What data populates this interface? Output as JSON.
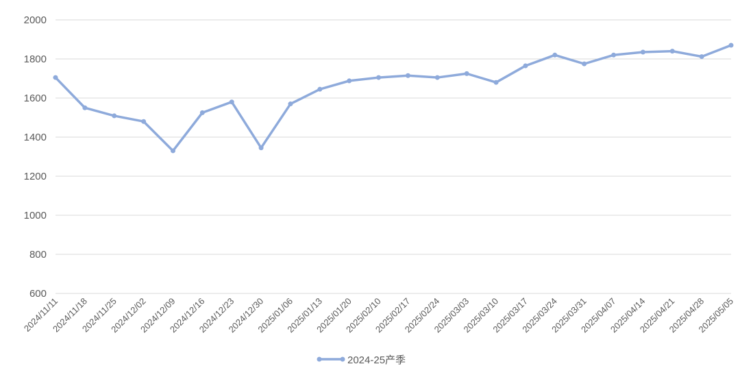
{
  "chart_data": {
    "type": "line",
    "categories": [
      "2024/11/11",
      "2024/11/18",
      "2024/11/25",
      "2024/12/02",
      "2024/12/09",
      "2024/12/16",
      "2024/12/23",
      "2024/12/30",
      "2025/01/06",
      "2025/01/13",
      "2025/01/20",
      "2025/02/10",
      "2025/02/17",
      "2025/02/24",
      "2025/03/03",
      "2025/03/10",
      "2025/03/17",
      "2025/03/24",
      "2025/03/31",
      "2025/04/07",
      "2025/04/14",
      "2025/04/21",
      "2025/04/28",
      "2025/05/05"
    ],
    "series": [
      {
        "name": "2024-25产季",
        "color": "#8eaadb",
        "values": [
          1705,
          1550,
          1509,
          1480,
          1330,
          1525,
          1580,
          1345,
          1570,
          1645,
          1688,
          1705,
          1715,
          1705,
          1725,
          1680,
          1765,
          1820,
          1775,
          1820,
          1835,
          1840,
          1812,
          1870
        ]
      }
    ],
    "ylim": [
      600,
      2000
    ],
    "yticks": [
      600,
      800,
      1000,
      1200,
      1400,
      1600,
      1800,
      2000
    ],
    "grid": true,
    "legend": "bottom"
  }
}
